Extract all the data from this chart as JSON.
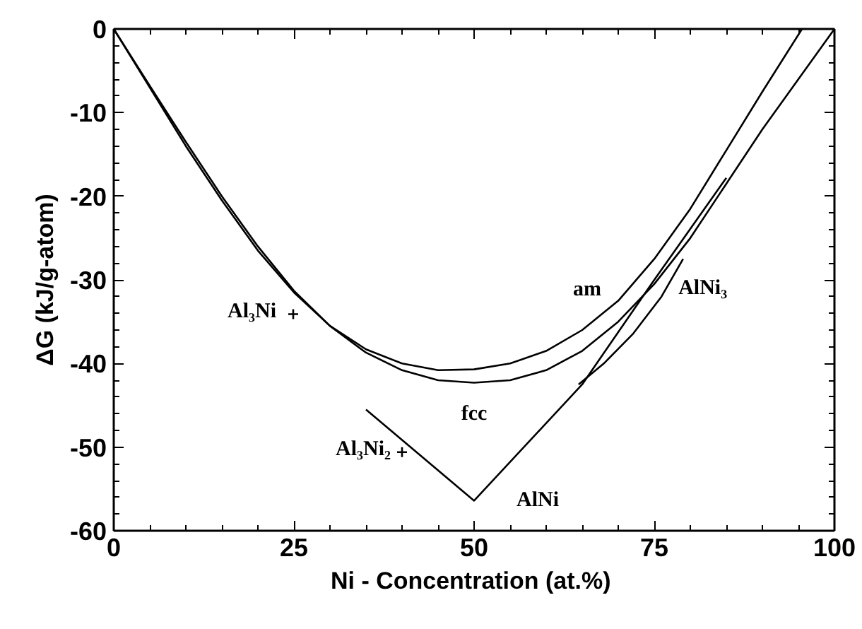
{
  "chart_data": {
    "type": "line",
    "xlabel": "Ni - Concentration  (at.%)",
    "ylabel": "ΔG (kJ/g-atom)",
    "xlim": [
      0,
      100
    ],
    "xticks": [
      0,
      25,
      50,
      75,
      100
    ],
    "ylim": [
      -60,
      0
    ],
    "yticks": [
      -60,
      -50,
      -40,
      -30,
      -20,
      -10,
      0
    ],
    "grid": false,
    "legend": false,
    "line_style": "solid",
    "series": [
      {
        "name": "am",
        "color": "#000000",
        "x": [
          0,
          5,
          10,
          15,
          20,
          25,
          30,
          35,
          40,
          45,
          50,
          55,
          60,
          65,
          70,
          75,
          80,
          85,
          90,
          95.5
        ],
        "values": [
          0,
          -7,
          -14,
          -20.5,
          -26.5,
          -31.5,
          -35.5,
          -38.3,
          -40,
          -40.8,
          -40.7,
          -40,
          -38.5,
          -36,
          -32.5,
          -27.5,
          -21.5,
          -14.5,
          -7.5,
          0
        ]
      },
      {
        "name": "fcc",
        "color": "#000000",
        "x": [
          0,
          5,
          10,
          15,
          20,
          25,
          30,
          35,
          40,
          45,
          50,
          55,
          60,
          65,
          70,
          75,
          80,
          85,
          90,
          95,
          100
        ],
        "values": [
          0,
          -6.8,
          -13.5,
          -20,
          -26,
          -31.3,
          -35.5,
          -38.7,
          -40.8,
          -42,
          -42.3,
          -42,
          -40.8,
          -38.5,
          -35,
          -30.5,
          -25,
          -18.5,
          -12,
          -6,
          0
        ]
      },
      {
        "name": "AlNi",
        "color": "#000000",
        "x": [
          35,
          50,
          65,
          75,
          85
        ],
        "values": [
          -45.5,
          -56.4,
          -42.5,
          -30,
          -17.8
        ]
      },
      {
        "name": "AlNi₃",
        "color": "#000000",
        "x": [
          64.5,
          68,
          72,
          76,
          79
        ],
        "values": [
          -42.5,
          -40,
          -36.5,
          -32,
          -27.5
        ]
      },
      {
        "name": "Al₃Ni",
        "type": "scatter",
        "marker": "cross",
        "color": "#000000",
        "x": [
          24.9
        ],
        "values": [
          -34.1
        ]
      },
      {
        "name": "Al₃Ni₂",
        "type": "scatter",
        "marker": "cross",
        "color": "#000000",
        "x": [
          40
        ],
        "values": [
          -50.6
        ]
      }
    ]
  }
}
